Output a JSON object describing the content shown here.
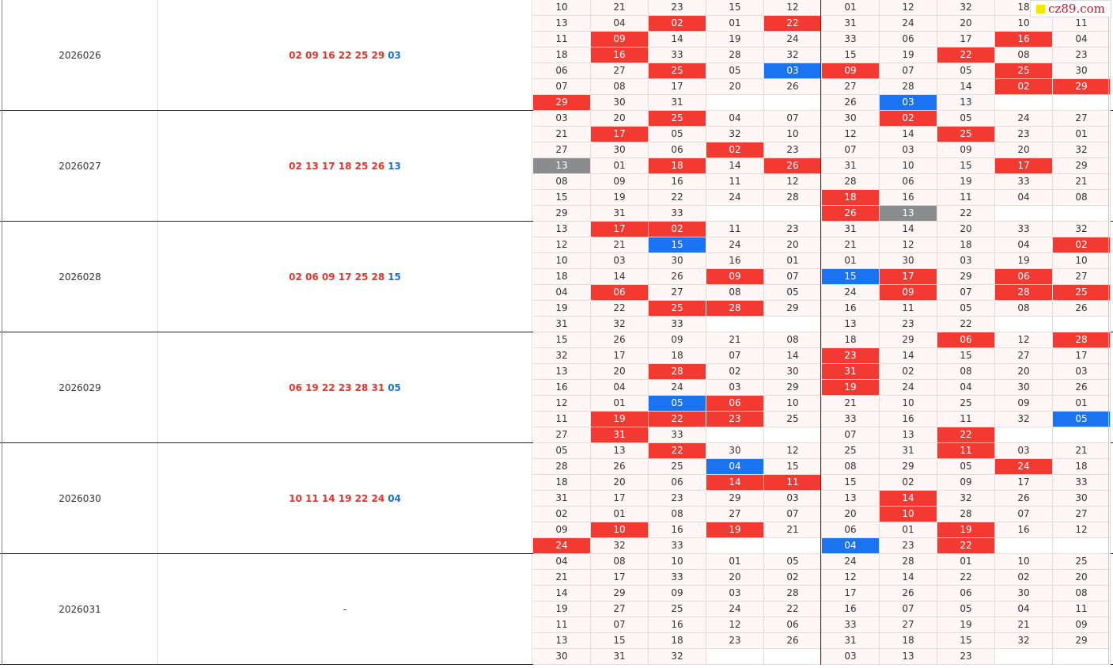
{
  "colors": {
    "hit_red": "#f23a33",
    "hit_blue": "#1a73f0",
    "hit_gray": "#8b8c8e",
    "draw_red": "#e8332a",
    "draw_blue": "#1e6fd6"
  },
  "watermark": {
    "text": "cz89.com"
  },
  "groups": [
    {
      "issue": "2026026",
      "draw_reds": "02 09 16 22 25 29",
      "draw_blue": "03",
      "rows": [
        [
          "10",
          "21",
          "23",
          "15",
          "12",
          "01",
          "12",
          "32",
          "18",
          ""
        ],
        [
          "13",
          "04",
          "02",
          "01",
          "22",
          "31",
          "24",
          "20",
          "10",
          "11"
        ],
        [
          "11",
          "09",
          "14",
          "19",
          "24",
          "33",
          "06",
          "17",
          "16",
          "04"
        ],
        [
          "18",
          "16",
          "33",
          "28",
          "32",
          "15",
          "19",
          "22",
          "08",
          "23"
        ],
        [
          "06",
          "27",
          "25",
          "05",
          "03",
          "09",
          "07",
          "05",
          "25",
          "30"
        ],
        [
          "07",
          "08",
          "17",
          "20",
          "26",
          "27",
          "28",
          "14",
          "02",
          "29"
        ],
        [
          "29",
          "30",
          "31",
          "",
          "",
          "26",
          "03",
          "13",
          "",
          ""
        ]
      ],
      "marks": [
        [
          0,
          0,
          0,
          0,
          0,
          0,
          0,
          0,
          0,
          0
        ],
        [
          0,
          0,
          1,
          0,
          1,
          0,
          0,
          0,
          0,
          0
        ],
        [
          0,
          1,
          0,
          0,
          0,
          0,
          0,
          0,
          1,
          0
        ],
        [
          0,
          1,
          0,
          0,
          0,
          0,
          0,
          1,
          0,
          0
        ],
        [
          0,
          0,
          1,
          0,
          2,
          1,
          0,
          0,
          1,
          0
        ],
        [
          0,
          0,
          0,
          0,
          0,
          0,
          0,
          0,
          1,
          1
        ],
        [
          1,
          0,
          0,
          0,
          0,
          0,
          2,
          0,
          0,
          0
        ]
      ]
    },
    {
      "issue": "2026027",
      "draw_reds": "02 13 17 18 25 26",
      "draw_blue": "13",
      "rows": [
        [
          "03",
          "20",
          "25",
          "04",
          "07",
          "30",
          "02",
          "05",
          "24",
          "27"
        ],
        [
          "21",
          "17",
          "05",
          "32",
          "10",
          "12",
          "14",
          "25",
          "23",
          "01"
        ],
        [
          "27",
          "30",
          "06",
          "02",
          "23",
          "07",
          "03",
          "09",
          "20",
          "32"
        ],
        [
          "13",
          "01",
          "18",
          "14",
          "26",
          "31",
          "10",
          "15",
          "17",
          "29"
        ],
        [
          "08",
          "09",
          "16",
          "11",
          "12",
          "28",
          "06",
          "19",
          "33",
          "21"
        ],
        [
          "15",
          "19",
          "22",
          "24",
          "28",
          "18",
          "16",
          "11",
          "04",
          "08"
        ],
        [
          "29",
          "31",
          "33",
          "",
          "",
          "26",
          "13",
          "22",
          "",
          ""
        ]
      ],
      "marks": [
        [
          0,
          0,
          1,
          0,
          0,
          0,
          1,
          0,
          0,
          0
        ],
        [
          0,
          1,
          0,
          0,
          0,
          0,
          0,
          1,
          0,
          0
        ],
        [
          0,
          0,
          0,
          1,
          0,
          0,
          0,
          0,
          0,
          0
        ],
        [
          3,
          0,
          1,
          0,
          1,
          0,
          0,
          0,
          1,
          0
        ],
        [
          0,
          0,
          0,
          0,
          0,
          0,
          0,
          0,
          0,
          0
        ],
        [
          0,
          0,
          0,
          0,
          0,
          1,
          0,
          0,
          0,
          0
        ],
        [
          0,
          0,
          0,
          0,
          0,
          1,
          3,
          0,
          0,
          0
        ]
      ]
    },
    {
      "issue": "2026028",
      "draw_reds": "02 06 09 17 25 28",
      "draw_blue": "15",
      "rows": [
        [
          "13",
          "17",
          "02",
          "11",
          "23",
          "31",
          "14",
          "20",
          "33",
          "32"
        ],
        [
          "12",
          "21",
          "15",
          "24",
          "20",
          "21",
          "12",
          "18",
          "04",
          "02"
        ],
        [
          "10",
          "03",
          "30",
          "16",
          "01",
          "01",
          "30",
          "03",
          "19",
          "10"
        ],
        [
          "18",
          "14",
          "26",
          "09",
          "07",
          "15",
          "17",
          "29",
          "06",
          "27"
        ],
        [
          "04",
          "06",
          "27",
          "08",
          "05",
          "24",
          "09",
          "07",
          "28",
          "25"
        ],
        [
          "19",
          "22",
          "25",
          "28",
          "29",
          "16",
          "11",
          "05",
          "08",
          "26"
        ],
        [
          "31",
          "32",
          "33",
          "",
          "",
          "13",
          "23",
          "22",
          "",
          ""
        ]
      ],
      "marks": [
        [
          0,
          1,
          1,
          0,
          0,
          0,
          0,
          0,
          0,
          0
        ],
        [
          0,
          0,
          2,
          0,
          0,
          0,
          0,
          0,
          0,
          1
        ],
        [
          0,
          0,
          0,
          0,
          0,
          0,
          0,
          0,
          0,
          0
        ],
        [
          0,
          0,
          0,
          1,
          0,
          2,
          1,
          0,
          1,
          0
        ],
        [
          0,
          1,
          0,
          0,
          0,
          0,
          1,
          0,
          1,
          1
        ],
        [
          0,
          0,
          1,
          1,
          0,
          0,
          0,
          0,
          0,
          0
        ],
        [
          0,
          0,
          0,
          0,
          0,
          0,
          0,
          0,
          0,
          0
        ]
      ]
    },
    {
      "issue": "2026029",
      "draw_reds": "06 19 22 23 28 31",
      "draw_blue": "05",
      "rows": [
        [
          "15",
          "26",
          "09",
          "21",
          "08",
          "18",
          "29",
          "06",
          "12",
          "28"
        ],
        [
          "32",
          "17",
          "18",
          "07",
          "14",
          "23",
          "14",
          "15",
          "27",
          "17"
        ],
        [
          "13",
          "20",
          "28",
          "02",
          "30",
          "31",
          "02",
          "08",
          "20",
          "03"
        ],
        [
          "16",
          "04",
          "24",
          "03",
          "29",
          "19",
          "24",
          "04",
          "30",
          "26"
        ],
        [
          "12",
          "01",
          "05",
          "06",
          "10",
          "21",
          "10",
          "25",
          "09",
          "01"
        ],
        [
          "11",
          "19",
          "22",
          "23",
          "25",
          "33",
          "16",
          "11",
          "32",
          "05"
        ],
        [
          "27",
          "31",
          "33",
          "",
          "",
          "07",
          "13",
          "22",
          "",
          ""
        ]
      ],
      "marks": [
        [
          0,
          0,
          0,
          0,
          0,
          0,
          0,
          1,
          0,
          1
        ],
        [
          0,
          0,
          0,
          0,
          0,
          1,
          0,
          0,
          0,
          0
        ],
        [
          0,
          0,
          1,
          0,
          0,
          1,
          0,
          0,
          0,
          0
        ],
        [
          0,
          0,
          0,
          0,
          0,
          1,
          0,
          0,
          0,
          0
        ],
        [
          0,
          0,
          2,
          1,
          0,
          0,
          0,
          0,
          0,
          0
        ],
        [
          0,
          1,
          1,
          1,
          0,
          0,
          0,
          0,
          0,
          2
        ],
        [
          0,
          1,
          0,
          0,
          0,
          0,
          0,
          1,
          0,
          0
        ]
      ]
    },
    {
      "issue": "2026030",
      "draw_reds": "10 11 14 19 22 24",
      "draw_blue": "04",
      "rows": [
        [
          "05",
          "13",
          "22",
          "30",
          "12",
          "25",
          "31",
          "11",
          "03",
          "21"
        ],
        [
          "28",
          "26",
          "25",
          "04",
          "15",
          "08",
          "29",
          "05",
          "24",
          "18"
        ],
        [
          "18",
          "20",
          "06",
          "14",
          "11",
          "15",
          "02",
          "09",
          "17",
          "33"
        ],
        [
          "31",
          "17",
          "23",
          "29",
          "03",
          "13",
          "14",
          "32",
          "26",
          "30"
        ],
        [
          "02",
          "01",
          "08",
          "27",
          "07",
          "20",
          "10",
          "28",
          "07",
          "27"
        ],
        [
          "09",
          "10",
          "16",
          "19",
          "21",
          "06",
          "01",
          "19",
          "16",
          "12"
        ],
        [
          "24",
          "32",
          "33",
          "",
          "",
          "04",
          "23",
          "22",
          "",
          ""
        ]
      ],
      "marks": [
        [
          0,
          0,
          1,
          0,
          0,
          0,
          0,
          1,
          0,
          0
        ],
        [
          0,
          0,
          0,
          2,
          0,
          0,
          0,
          0,
          1,
          0
        ],
        [
          0,
          0,
          0,
          1,
          1,
          0,
          0,
          0,
          0,
          0
        ],
        [
          0,
          0,
          0,
          0,
          0,
          0,
          1,
          0,
          0,
          0
        ],
        [
          0,
          0,
          0,
          0,
          0,
          0,
          1,
          0,
          0,
          0
        ],
        [
          0,
          1,
          0,
          1,
          0,
          0,
          0,
          1,
          0,
          0
        ],
        [
          1,
          0,
          0,
          0,
          0,
          2,
          0,
          1,
          0,
          0
        ]
      ]
    },
    {
      "issue": "2026031",
      "draw_reds": "",
      "draw_blue": "",
      "draw_placeholder": "-",
      "rows": [
        [
          "04",
          "08",
          "10",
          "01",
          "05",
          "24",
          "28",
          "01",
          "10",
          "25"
        ],
        [
          "21",
          "17",
          "33",
          "20",
          "02",
          "12",
          "14",
          "22",
          "02",
          "20"
        ],
        [
          "14",
          "29",
          "09",
          "03",
          "28",
          "17",
          "26",
          "06",
          "30",
          "08"
        ],
        [
          "19",
          "27",
          "25",
          "24",
          "22",
          "16",
          "07",
          "05",
          "04",
          "11"
        ],
        [
          "11",
          "07",
          "16",
          "12",
          "06",
          "33",
          "27",
          "19",
          "21",
          "09"
        ],
        [
          "13",
          "15",
          "18",
          "23",
          "26",
          "31",
          "18",
          "15",
          "32",
          "29"
        ],
        [
          "30",
          "31",
          "32",
          "",
          "",
          "03",
          "13",
          "23",
          "",
          ""
        ]
      ],
      "marks": [
        [
          0,
          0,
          0,
          0,
          0,
          0,
          0,
          0,
          0,
          0
        ],
        [
          0,
          0,
          0,
          0,
          0,
          0,
          0,
          0,
          0,
          0
        ],
        [
          0,
          0,
          0,
          0,
          0,
          0,
          0,
          0,
          0,
          0
        ],
        [
          0,
          0,
          0,
          0,
          0,
          0,
          0,
          0,
          0,
          0
        ],
        [
          0,
          0,
          0,
          0,
          0,
          0,
          0,
          0,
          0,
          0
        ],
        [
          0,
          0,
          0,
          0,
          0,
          0,
          0,
          0,
          0,
          0
        ],
        [
          0,
          0,
          0,
          0,
          0,
          0,
          0,
          0,
          0,
          0
        ]
      ]
    }
  ]
}
